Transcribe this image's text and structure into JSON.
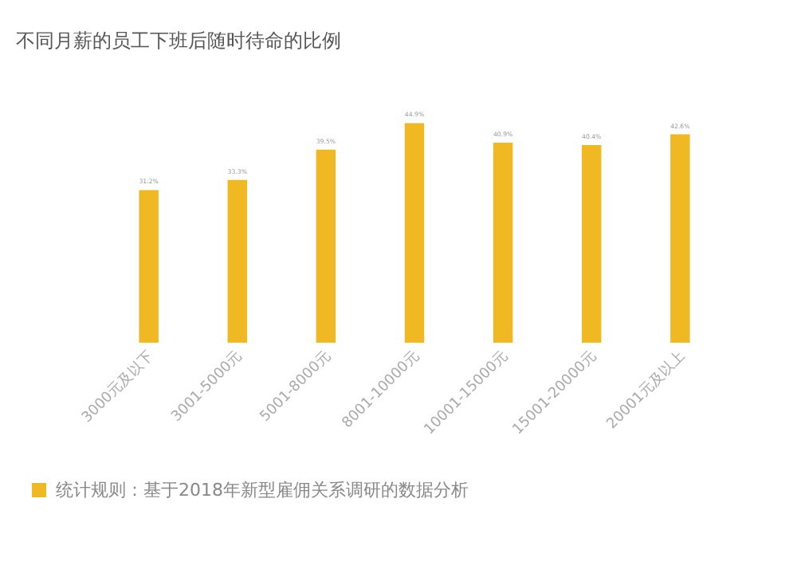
{
  "chart_data": {
    "type": "bar",
    "title": "不同月薪的员工下班后随时待命的比例",
    "categories": [
      "3000元及以下",
      "3001-5000元",
      "5001-8000元",
      "8001-10000元",
      "10001-15000元",
      "15001-20000元",
      "20001元及以上"
    ],
    "values": [
      31.2,
      33.3,
      39.5,
      44.9,
      40.9,
      40.4,
      42.6
    ],
    "value_labels": [
      "31.2%",
      "33.3%",
      "39.5%",
      "44.9%",
      "40.9%",
      "40.4%",
      "42.6%"
    ],
    "color": "#f0b823",
    "annotations": [
      "统计规则：基于2018年新型雇佣关系调研的数据分析"
    ]
  }
}
